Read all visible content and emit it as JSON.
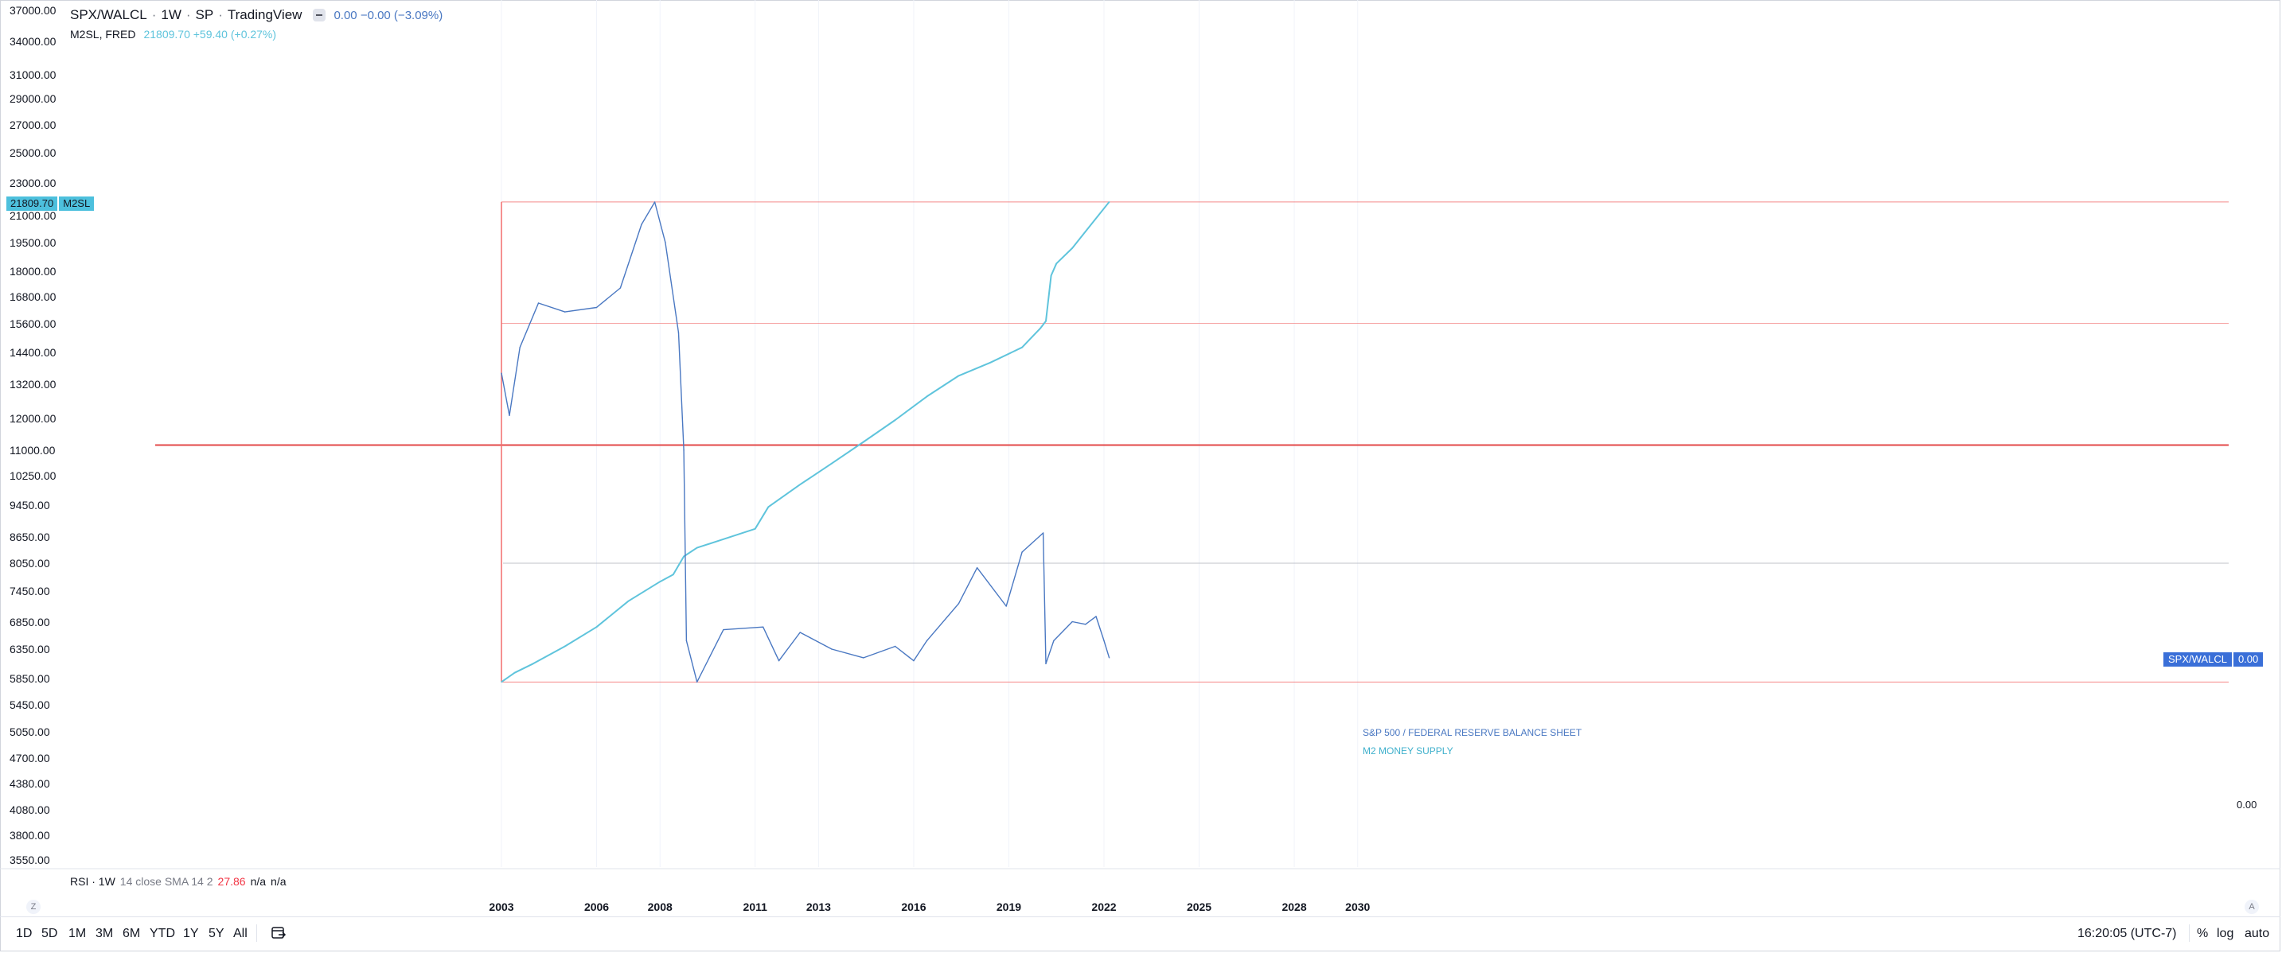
{
  "legend": {
    "symbol": "SPX/WALCL",
    "interval": "1W",
    "exchange": "SP",
    "source": "TradingView",
    "values": "0.00 −0.00 (−3.09%)",
    "m2_name": "M2SL, FRED",
    "m2_values": "21809.70 +59.40 (+0.27%)"
  },
  "price_tags": {
    "m2_value": "21809.70",
    "m2_label": "M2SL",
    "spx_label": "SPX/WALCL",
    "spx_value": "0.00",
    "right_scale_value": "0.00"
  },
  "annotations": {
    "spx": "S&P 500 / FEDERAL RESERVE BALANCE SHEET",
    "m2": "M2 MONEY SUPPLY"
  },
  "rsi": {
    "name": "RSI · 1W",
    "params": "14 close SMA 14 2",
    "value": "27.86",
    "na1": "n/a",
    "na2": "n/a"
  },
  "colors": {
    "spx_line": "#4a78c2",
    "m2_line": "#5fc4dc",
    "red_lines": "#f26d6d",
    "grid": "#f0f3fa"
  },
  "icons": {
    "zoom_reset": "Z",
    "auto_scale": "A",
    "date_range": "calendar-range-icon"
  },
  "bottom_bar": {
    "ranges": [
      "1D",
      "5D",
      "1M",
      "3M",
      "6M",
      "YTD",
      "1Y",
      "5Y",
      "All"
    ],
    "clock": "16:20:05 (UTC-7)",
    "percent": "%",
    "log": "log",
    "auto": "auto"
  },
  "chart_data": {
    "type": "line",
    "scale": "log",
    "yaxis_ticks": [
      "37000.00",
      "34000.00",
      "31000.00",
      "29000.00",
      "27000.00",
      "25000.00",
      "23000.00",
      "21000.00",
      "19500.00",
      "18000.00",
      "16800.00",
      "15600.00",
      "14400.00",
      "13200.00",
      "12000.00",
      "11000.00",
      "10250.00",
      "9450.00",
      "8650.00",
      "8050.00",
      "7450.00",
      "6850.00",
      "6350.00",
      "5850.00",
      "5450.00",
      "5050.00",
      "4700.00",
      "4380.00",
      "4080.00",
      "3800.00",
      "3550.00"
    ],
    "xaxis_ticks": [
      "2003",
      "2006",
      "2008",
      "2011",
      "2013",
      "2016",
      "2019",
      "2022",
      "2025",
      "2028",
      "2030"
    ],
    "x_range": [
      "2001-04-01",
      "2035-09-01"
    ],
    "series": [
      {
        "name": "M2SL",
        "x": [
          "2003-01",
          "2003-06",
          "2004-01",
          "2005-01",
          "2006-01",
          "2007-01",
          "2008-01",
          "2008-06",
          "2008-10",
          "2009-03",
          "2010-01",
          "2011-01",
          "2011-06",
          "2012-06",
          "2013-06",
          "2014-06",
          "2015-06",
          "2016-06",
          "2017-06",
          "2018-06",
          "2019-06",
          "2020-01",
          "2020-03",
          "2020-05",
          "2020-07",
          "2021-01",
          "2021-06",
          "2022-03"
        ],
        "values": [
          5800,
          5950,
          6100,
          6400,
          6750,
          7250,
          7650,
          7800,
          8200,
          8400,
          8600,
          8850,
          9400,
          10000,
          10600,
          11250,
          11950,
          12750,
          13500,
          14000,
          14600,
          15400,
          15700,
          17800,
          18400,
          19200,
          20100,
          21809.7
        ]
      },
      {
        "name": "SPX/WALCL",
        "x": [
          "2003-01",
          "2003-04",
          "2003-08",
          "2004-03",
          "2005-01",
          "2006-01",
          "2006-10",
          "2007-06",
          "2007-11",
          "2008-03",
          "2008-08",
          "2008-10",
          "2008-11",
          "2009-03",
          "2010-01",
          "2011-04",
          "2011-10",
          "2012-06",
          "2013-06",
          "2014-06",
          "2015-06",
          "2016-01",
          "2016-06",
          "2017-06",
          "2018-01",
          "2018-12",
          "2019-06",
          "2020-02",
          "2020-03",
          "2020-06",
          "2021-01",
          "2021-06",
          "2021-10",
          "2022-01",
          "2022-03"
        ],
        "values": [
          13600,
          12100,
          14600,
          16500,
          16100,
          16300,
          17200,
          20500,
          21800,
          19500,
          15200,
          11000,
          6500,
          5800,
          6700,
          6750,
          6150,
          6650,
          6350,
          6200,
          6400,
          6150,
          6500,
          7200,
          7950,
          7150,
          8300,
          8750,
          6100,
          6500,
          6850,
          6800,
          6950,
          6500,
          6200
        ]
      }
    ],
    "levels": [
      {
        "name": "upper-level",
        "y": 21809.7
      },
      {
        "name": "mid-level",
        "y": 15600
      },
      {
        "name": "horizontal-red-line",
        "y": 11150
      },
      {
        "name": "gray-level",
        "y": 8050
      },
      {
        "name": "lower-level",
        "y": 5800
      }
    ],
    "vertical_lines": [
      {
        "name": "start-vertical-line",
        "x": "2003-01"
      }
    ],
    "grid": true,
    "legend": "top-left"
  }
}
